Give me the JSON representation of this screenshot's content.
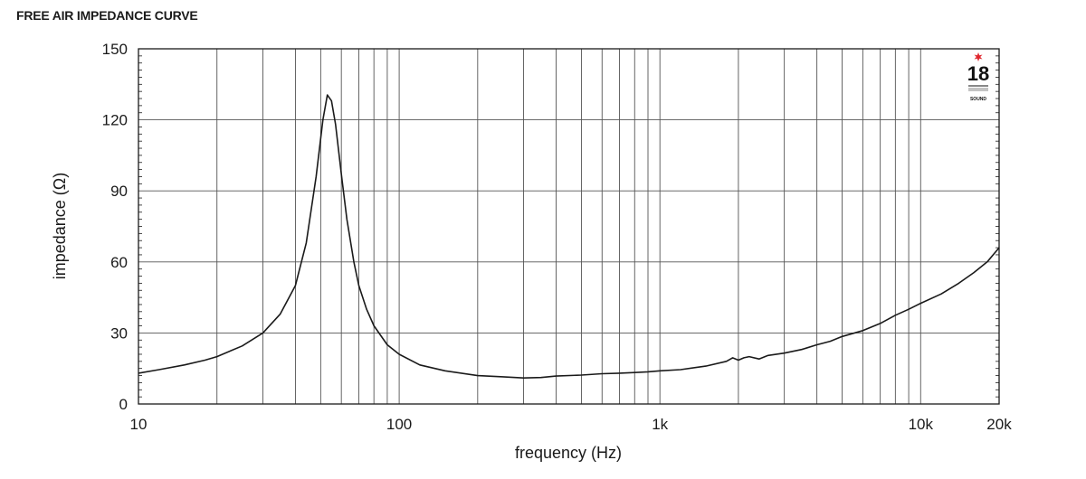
{
  "chart_data": {
    "type": "line",
    "title": "FREE AIR IMPEDANCE CURVE",
    "xlabel": "frequency (Hz)",
    "ylabel": "impedance (Ω)",
    "xscale": "log",
    "xlim": [
      10,
      20000
    ],
    "ylim": [
      0,
      150
    ],
    "x_ticks": [
      {
        "value": 10,
        "label": "10"
      },
      {
        "value": 100,
        "label": "100"
      },
      {
        "value": 1000,
        "label": "1k"
      },
      {
        "value": 10000,
        "label": "10k"
      },
      {
        "value": 20000,
        "label": "20k"
      }
    ],
    "y_ticks": [
      {
        "value": 0,
        "label": "0"
      },
      {
        "value": 30,
        "label": "30"
      },
      {
        "value": 60,
        "label": "60"
      },
      {
        "value": 90,
        "label": "90"
      },
      {
        "value": 120,
        "label": "120"
      },
      {
        "value": 150,
        "label": "150"
      }
    ],
    "grid": true,
    "line_color": "#1a1a1a",
    "series": [
      {
        "x": [
          10,
          12,
          15,
          18,
          20,
          25,
          30,
          35,
          40,
          44,
          48,
          51,
          53,
          55,
          57,
          60,
          63,
          67,
          70,
          75,
          80,
          90,
          100,
          120,
          150,
          200,
          250,
          300,
          350,
          400,
          500,
          600,
          700,
          800,
          900,
          1000,
          1200,
          1500,
          1800,
          1900,
          2000,
          2100,
          2200,
          2400,
          2600,
          3000,
          3500,
          4000,
          4500,
          5000,
          6000,
          7000,
          8000,
          9000,
          10000,
          12000,
          14000,
          16000,
          18000,
          20000
        ],
        "y": [
          13,
          14.5,
          16.5,
          18.5,
          20,
          24.5,
          30,
          38,
          50,
          68,
          96,
          120,
          130.5,
          128,
          118,
          97,
          78,
          60,
          50,
          40,
          33,
          25,
          21,
          16.5,
          14,
          12,
          11.5,
          11,
          11.2,
          11.8,
          12.2,
          12.8,
          13,
          13.3,
          13.6,
          14,
          14.5,
          16,
          18,
          19.5,
          18.5,
          19.5,
          20,
          19,
          20.5,
          21.5,
          23,
          25,
          26.5,
          28.5,
          31,
          34,
          37.5,
          40,
          42.5,
          46.5,
          51,
          55.5,
          60,
          66
        ]
      }
    ]
  },
  "logo": {
    "number": "18",
    "sub": "SOUND",
    "accent_color": "#e0262e"
  }
}
